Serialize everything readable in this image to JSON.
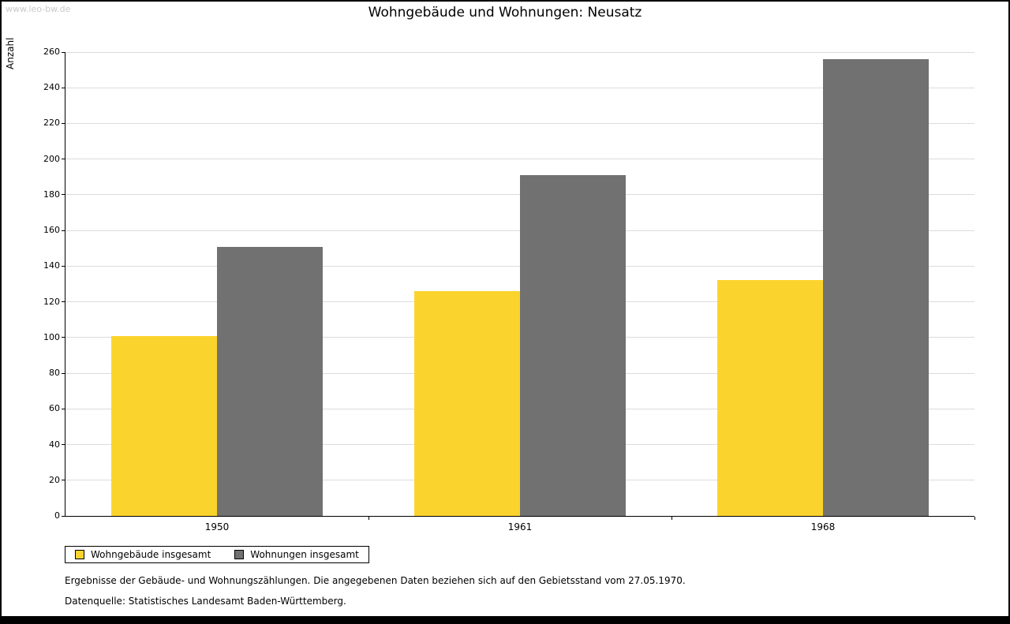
{
  "watermark": "www.leo-bw.de",
  "title": "Wohngebäude und Wohnungen: Neusatz",
  "chart_data": {
    "type": "bar",
    "title": "Wohngebäude und Wohnungen: Neusatz",
    "xlabel": "",
    "ylabel": "Anzahl",
    "categories": [
      "1950",
      "1961",
      "1968"
    ],
    "series": [
      {
        "name": "Wohngebäude insgesamt",
        "color": "#fbd32d",
        "values": [
          101,
          126,
          132
        ]
      },
      {
        "name": "Wohnungen insgesamt",
        "color": "#717171",
        "values": [
          151,
          191,
          256
        ]
      }
    ],
    "ylim": [
      0,
      260
    ],
    "yticks": [
      0,
      20,
      40,
      60,
      80,
      100,
      120,
      140,
      160,
      180,
      200,
      220,
      240,
      260
    ],
    "grid": true,
    "legend_position": "bottom-left"
  },
  "footer": {
    "line1": "Ergebnisse der Gebäude- und Wohnungszählungen. Die angegebenen Daten beziehen sich auf den Gebietsstand vom 27.05.1970.",
    "line2": "Datenquelle: Statistisches Landesamt Baden-Württemberg."
  }
}
